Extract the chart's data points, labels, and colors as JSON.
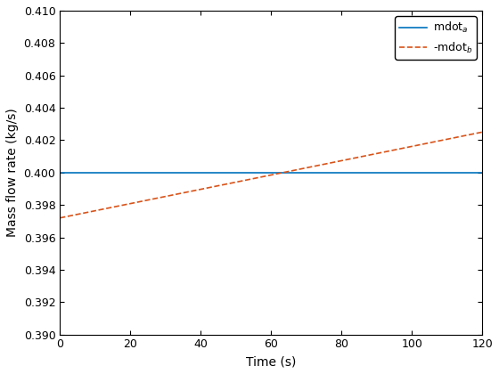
{
  "xlabel": "Time (s)",
  "ylabel": "Mass flow rate (kg/s)",
  "xlim": [
    0,
    120
  ],
  "ylim": [
    0.39,
    0.41
  ],
  "line1_color": "#0072BD",
  "line1_style": "-",
  "line1_label": "mdot$_a$",
  "line1_y": 0.4,
  "line2_color": "#D95319",
  "line2_style": "--",
  "line2_label": "-mdot$_b$",
  "line2_x0": 0,
  "line2_y0": 0.3972,
  "line2_x1": 120,
  "line2_y1": 0.4025,
  "background_color": "#ffffff",
  "legend_loc": "upper right",
  "tick_fontsize": 9,
  "label_fontsize": 10,
  "figwidth": 5.6,
  "figheight": 4.2,
  "dpi": 100
}
